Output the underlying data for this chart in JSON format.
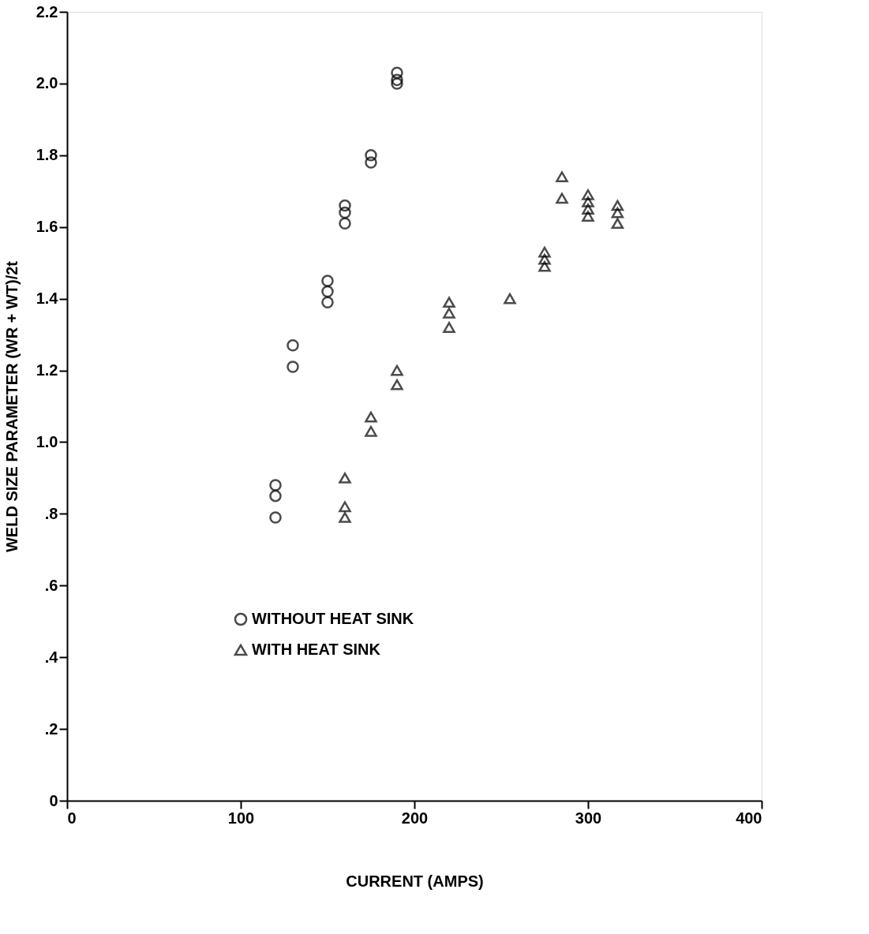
{
  "chart_data": {
    "type": "scatter",
    "xlabel": "CURRENT (AMPS)",
    "ylabel": "WELD SIZE PARAMETER (WR + WT)/2t",
    "xlim": [
      0,
      400
    ],
    "xticks": [
      0,
      100,
      200,
      300,
      400
    ],
    "ylim": [
      0,
      2.2
    ],
    "yticks": [
      0,
      {
        "value": 0.2,
        "label": ".2"
      },
      {
        "value": 0.4,
        "label": ".4"
      },
      {
        "value": 0.6,
        "label": ".6"
      },
      {
        "value": 0.8,
        "label": ".8"
      },
      {
        "value": 1.0,
        "label": "1.0"
      },
      1.2,
      1.4,
      1.6,
      1.8,
      {
        "value": 2.0,
        "label": "2.0"
      },
      2.2
    ],
    "grid": false,
    "legend": "bottom left",
    "series": [
      {
        "name": "WITHOUT HEAT SINK",
        "color": "#000000",
        "marker": "circle",
        "x": [
          120,
          120,
          120,
          130,
          130,
          150,
          150,
          150,
          160,
          160,
          160,
          175,
          175,
          190,
          190,
          190
        ],
        "values": [
          0.88,
          0.85,
          0.79,
          1.27,
          1.21,
          1.45,
          1.42,
          1.39,
          1.66,
          1.64,
          1.61,
          1.8,
          1.78,
          2.03,
          2.01,
          2.0
        ]
      },
      {
        "name": "WITH HEAT SINK",
        "color": "#000000",
        "marker": "triangle",
        "x": [
          160,
          160,
          160,
          175,
          175,
          190,
          190,
          220,
          220,
          220,
          255,
          275,
          275,
          275,
          285,
          285,
          300,
          300,
          300,
          300,
          317,
          317,
          317
        ],
        "values": [
          0.9,
          0.82,
          0.79,
          1.07,
          1.03,
          1.2,
          1.16,
          1.39,
          1.36,
          1.32,
          1.4,
          1.53,
          1.51,
          1.49,
          1.74,
          1.68,
          1.69,
          1.67,
          1.65,
          1.63,
          1.66,
          1.64,
          1.61
        ]
      }
    ]
  }
}
